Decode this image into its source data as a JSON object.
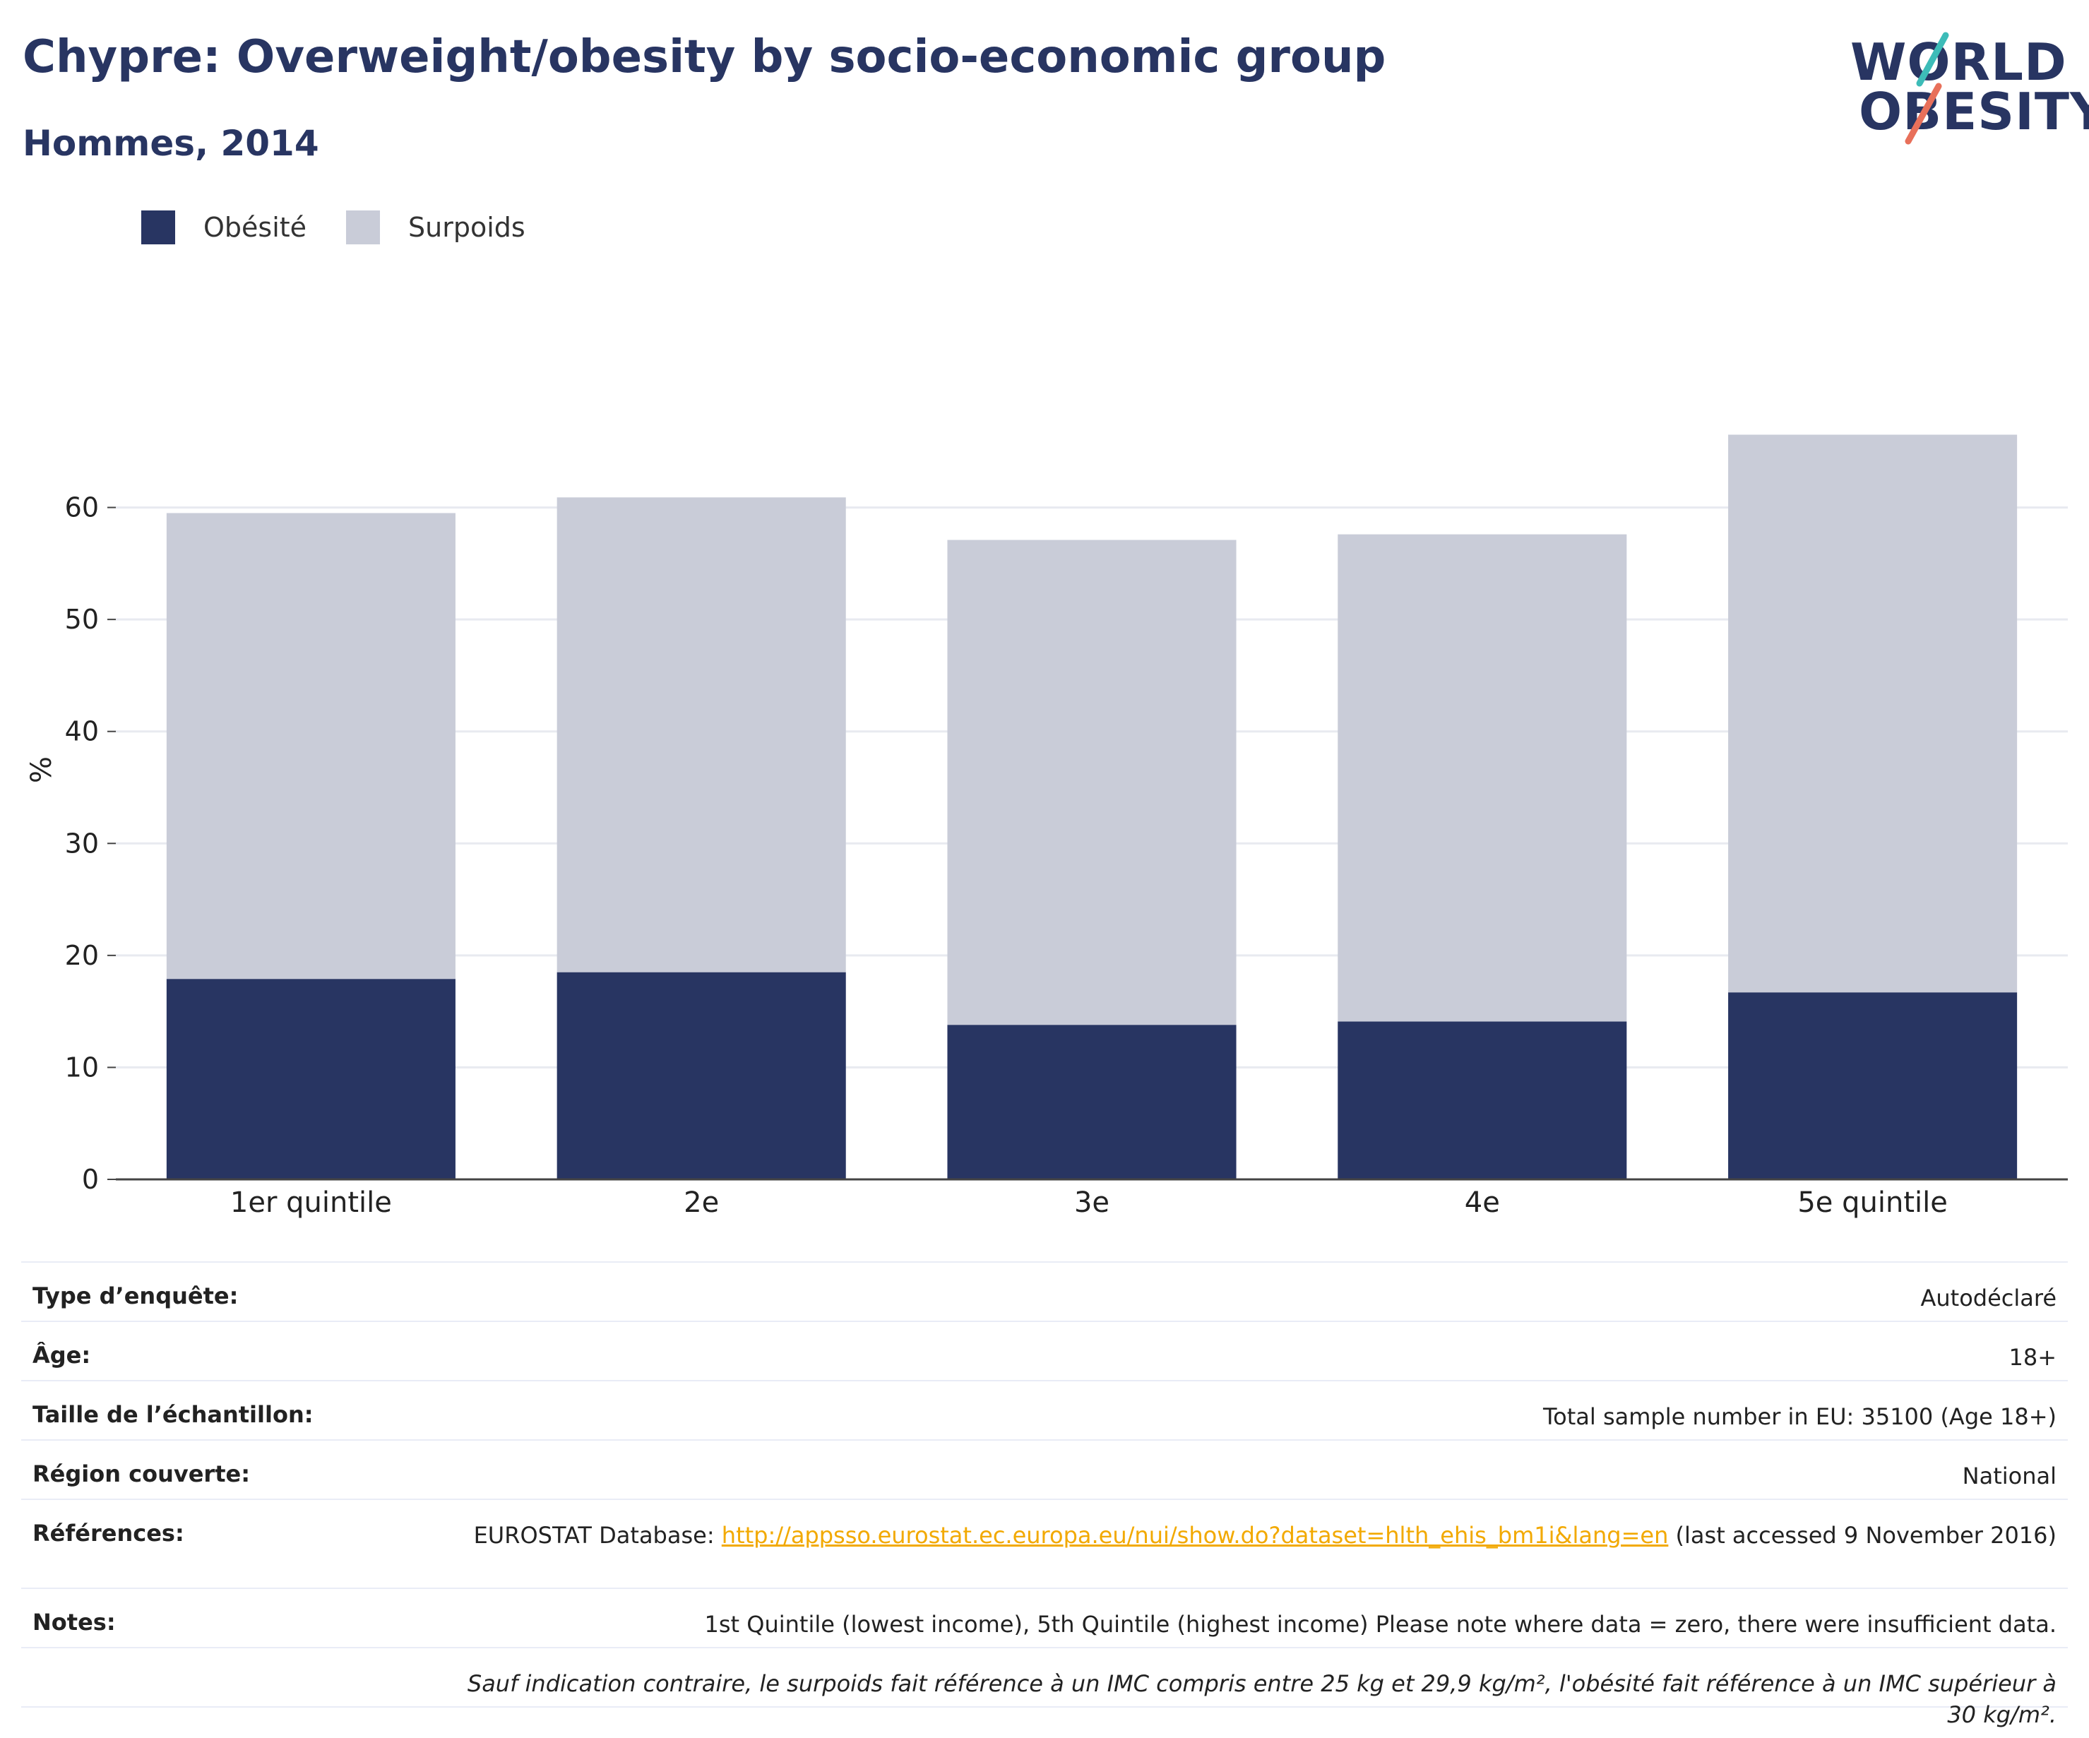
{
  "title": "Chypre: Overweight/obesity by socio-economic group",
  "subtitle": "Hommes, 2014",
  "logo": {
    "line1": "WORLD",
    "line2": "OBESITY"
  },
  "colors": {
    "obesity": "#283562",
    "overweight": "#c9ccd8",
    "text": "#283562",
    "link": "#f2a900",
    "grid": "#e8eaf0"
  },
  "legend": [
    {
      "label": "Obésité",
      "color": "#283562"
    },
    {
      "label": "Surpoids",
      "color": "#c9ccd8"
    }
  ],
  "chart_data": {
    "type": "bar",
    "stacked": true,
    "categories": [
      "1er quintile",
      "2e",
      "3e",
      "4e",
      "5e quintile"
    ],
    "series": [
      {
        "name": "Obésité",
        "values": [
          17.9,
          18.5,
          13.8,
          14.1,
          16.7
        ]
      },
      {
        "name": "Surpoids",
        "values": [
          41.6,
          42.4,
          43.3,
          43.5,
          49.8
        ]
      }
    ],
    "ylabel": "%",
    "ylim": [
      0,
      70
    ],
    "yticks": [
      0,
      10,
      20,
      30,
      40,
      50,
      60
    ],
    "grid": true
  },
  "info": {
    "survey_key": "Type d’enquête:",
    "survey_val": "Autodéclaré",
    "age_key": "Âge:",
    "age_val": "18+",
    "sample_key": "Taille de l’échantillon:",
    "sample_val": "Total sample number in EU: 35100 (Age 18+)",
    "region_key": "Région couverte:",
    "region_val": "National",
    "refs_key": "Références:",
    "refs_prefix": "EUROSTAT Database: ",
    "refs_link": "http://appsso.eurostat.ec.europa.eu/nui/show.do?dataset=hlth_ehis_bm1i&lang=en",
    "refs_suffix": " (last accessed 9 November 2016)",
    "notes_key": "Notes:",
    "notes_val": "1st Quintile (lowest income), 5th Quintile (highest income) Please note where data = zero, there were insufficient data.",
    "footnote": "Sauf indication contraire, le surpoids fait référence à un IMC compris entre 25 kg et 29,9 kg/m², l'obésité fait référence à un IMC supérieur à 30 kg/m²."
  }
}
